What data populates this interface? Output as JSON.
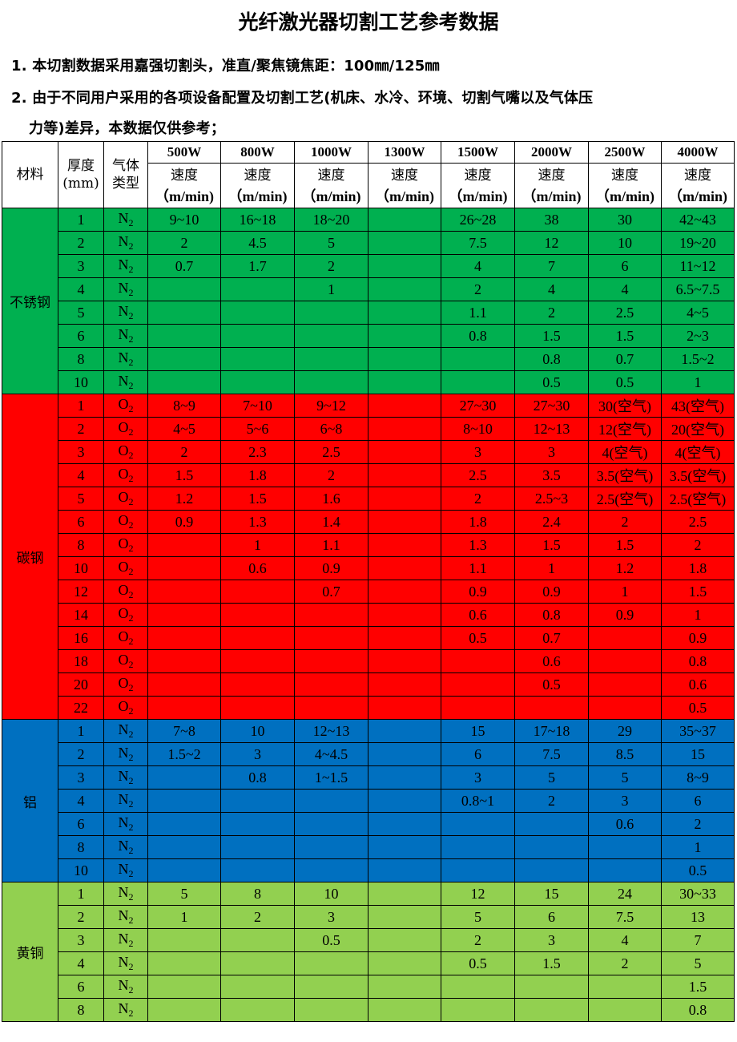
{
  "title": "光纤激光器切割工艺参考数据",
  "notes": [
    "1. 本切割数据采用嘉强切割头，准直/聚焦镜焦距：100㎜/125㎜",
    "2. 由于不同用户采用的各项设备配置及切割工艺(机床、水冷、环境、切割气嘴以及气体压",
    "力等)差异，本数据仅供参考；"
  ],
  "table": {
    "headers": {
      "material": "材料",
      "thickness": "厚度\n(mm)",
      "gas": "气体\n类型",
      "powers": [
        "500W",
        "800W",
        "1000W",
        "1300W",
        "1500W",
        "2000W",
        "2500W",
        "4000W"
      ],
      "speed_label": "速度",
      "speed_unit": "（m/min)"
    },
    "groups": [
      {
        "material": "不锈钢",
        "color": "#00b050",
        "rows": [
          {
            "t": "1",
            "gas": "N",
            "sub": "2",
            "v": [
              "9~10",
              "16~18",
              "18~20",
              "",
              "26~28",
              "38",
              "30",
              "42~43"
            ]
          },
          {
            "t": "2",
            "gas": "N",
            "sub": "2",
            "v": [
              "2",
              "4.5",
              "5",
              "",
              "7.5",
              "12",
              "10",
              "19~20"
            ]
          },
          {
            "t": "3",
            "gas": "N",
            "sub": "2",
            "v": [
              "0.7",
              "1.7",
              "2",
              "",
              "4",
              "7",
              "6",
              "11~12"
            ]
          },
          {
            "t": "4",
            "gas": "N",
            "sub": "2",
            "v": [
              "",
              "",
              "1",
              "",
              "2",
              "4",
              "4",
              "6.5~7.5"
            ]
          },
          {
            "t": "5",
            "gas": "N",
            "sub": "2",
            "v": [
              "",
              "",
              "",
              "",
              "1.1",
              "2",
              "2.5",
              "4~5"
            ]
          },
          {
            "t": "6",
            "gas": "N",
            "sub": "2",
            "v": [
              "",
              "",
              "",
              "",
              "0.8",
              "1.5",
              "1.5",
              "2~3"
            ]
          },
          {
            "t": "8",
            "gas": "N",
            "sub": "2",
            "v": [
              "",
              "",
              "",
              "",
              "",
              "0.8",
              "0.7",
              "1.5~2"
            ]
          },
          {
            "t": "10",
            "gas": "N",
            "sub": "2",
            "v": [
              "",
              "",
              "",
              "",
              "",
              "0.5",
              "0.5",
              "1"
            ]
          }
        ]
      },
      {
        "material": "碳钢",
        "color": "#ff0000",
        "rows": [
          {
            "t": "1",
            "gas": "O",
            "sub": "2",
            "v": [
              "8~9",
              "7~10",
              "9~12",
              "",
              "27~30",
              "27~30",
              "30(空气)",
              "43(空气)"
            ]
          },
          {
            "t": "2",
            "gas": "O",
            "sub": "2",
            "v": [
              "4~5",
              "5~6",
              "6~8",
              "",
              "8~10",
              "12~13",
              "12(空气)",
              "20(空气)"
            ]
          },
          {
            "t": "3",
            "gas": "O",
            "sub": "2",
            "v": [
              "2",
              "2.3",
              "2.5",
              "",
              "3",
              "3",
              "4(空气)",
              "4(空气)"
            ]
          },
          {
            "t": "4",
            "gas": "O",
            "sub": "2",
            "v": [
              "1.5",
              "1.8",
              "2",
              "",
              "2.5",
              "3.5",
              "3.5(空气)",
              "3.5(空气)"
            ]
          },
          {
            "t": "5",
            "gas": "O",
            "sub": "2",
            "v": [
              "1.2",
              "1.5",
              "1.6",
              "",
              "2",
              "2.5~3",
              "2.5(空气)",
              "2.5(空气)"
            ]
          },
          {
            "t": "6",
            "gas": "O",
            "sub": "2",
            "v": [
              "0.9",
              "1.3",
              "1.4",
              "",
              "1.8",
              "2.4",
              "2",
              "2.5"
            ]
          },
          {
            "t": "8",
            "gas": "O",
            "sub": "2",
            "v": [
              "",
              "1",
              "1.1",
              "",
              "1.3",
              "1.5",
              "1.5",
              "2"
            ]
          },
          {
            "t": "10",
            "gas": "O",
            "sub": "2",
            "v": [
              "",
              "0.6",
              "0.9",
              "",
              "1.1",
              "1",
              "1.2",
              "1.8"
            ]
          },
          {
            "t": "12",
            "gas": "O",
            "sub": "2",
            "v": [
              "",
              "",
              "0.7",
              "",
              "0.9",
              "0.9",
              "1",
              "1.5"
            ]
          },
          {
            "t": "14",
            "gas": "O",
            "sub": "2",
            "v": [
              "",
              "",
              "",
              "",
              "0.6",
              "0.8",
              "0.9",
              "1"
            ]
          },
          {
            "t": "16",
            "gas": "O",
            "sub": "2",
            "v": [
              "",
              "",
              "",
              "",
              "0.5",
              "0.7",
              "",
              "0.9"
            ]
          },
          {
            "t": "18",
            "gas": "O",
            "sub": "2",
            "v": [
              "",
              "",
              "",
              "",
              "",
              "0.6",
              "",
              "0.8"
            ]
          },
          {
            "t": "20",
            "gas": "O",
            "sub": "2",
            "v": [
              "",
              "",
              "",
              "",
              "",
              "0.5",
              "",
              "0.6"
            ]
          },
          {
            "t": "22",
            "gas": "O",
            "sub": "2",
            "v": [
              "",
              "",
              "",
              "",
              "",
              "",
              "",
              "0.5"
            ]
          }
        ]
      },
      {
        "material": "铝",
        "color": "#0070c0",
        "rows": [
          {
            "t": "1",
            "gas": "N",
            "sub": "2",
            "v": [
              "7~8",
              "10",
              "12~13",
              "",
              "15",
              "17~18",
              "29",
              "35~37"
            ]
          },
          {
            "t": "2",
            "gas": "N",
            "sub": "2",
            "v": [
              "1.5~2",
              "3",
              "4~4.5",
              "",
              "6",
              "7.5",
              "8.5",
              "15"
            ]
          },
          {
            "t": "3",
            "gas": "N",
            "sub": "2",
            "v": [
              "",
              "0.8",
              "1~1.5",
              "",
              "3",
              "5",
              "5",
              "8~9"
            ]
          },
          {
            "t": "4",
            "gas": "N",
            "sub": "2",
            "v": [
              "",
              "",
              "",
              "",
              "0.8~1",
              "2",
              "3",
              "6"
            ]
          },
          {
            "t": "6",
            "gas": "N",
            "sub": "2",
            "v": [
              "",
              "",
              "",
              "",
              "",
              "",
              "0.6",
              "2"
            ]
          },
          {
            "t": "8",
            "gas": "N",
            "sub": "2",
            "v": [
              "",
              "",
              "",
              "",
              "",
              "",
              "",
              "1"
            ]
          },
          {
            "t": "10",
            "gas": "N",
            "sub": "2",
            "v": [
              "",
              "",
              "",
              "",
              "",
              "",
              "",
              "0.5"
            ]
          }
        ]
      },
      {
        "material": "黄铜",
        "color": "#92d050",
        "rows": [
          {
            "t": "1",
            "gas": "N",
            "sub": "2",
            "v": [
              "5",
              "8",
              "10",
              "",
              "12",
              "15",
              "24",
              "30~33"
            ]
          },
          {
            "t": "2",
            "gas": "N",
            "sub": "2",
            "v": [
              "1",
              "2",
              "3",
              "",
              "5",
              "6",
              "7.5",
              "13"
            ]
          },
          {
            "t": "3",
            "gas": "N",
            "sub": "2",
            "v": [
              "",
              "",
              "0.5",
              "",
              "2",
              "3",
              "4",
              "7"
            ]
          },
          {
            "t": "4",
            "gas": "N",
            "sub": "2",
            "v": [
              "",
              "",
              "",
              "",
              "0.5",
              "1.5",
              "2",
              "5"
            ]
          },
          {
            "t": "6",
            "gas": "N",
            "sub": "2",
            "v": [
              "",
              "",
              "",
              "",
              "",
              "",
              "",
              "1.5"
            ]
          },
          {
            "t": "8",
            "gas": "N",
            "sub": "2",
            "v": [
              "",
              "",
              "",
              "",
              "",
              "",
              "",
              "0.8"
            ]
          }
        ]
      }
    ]
  }
}
